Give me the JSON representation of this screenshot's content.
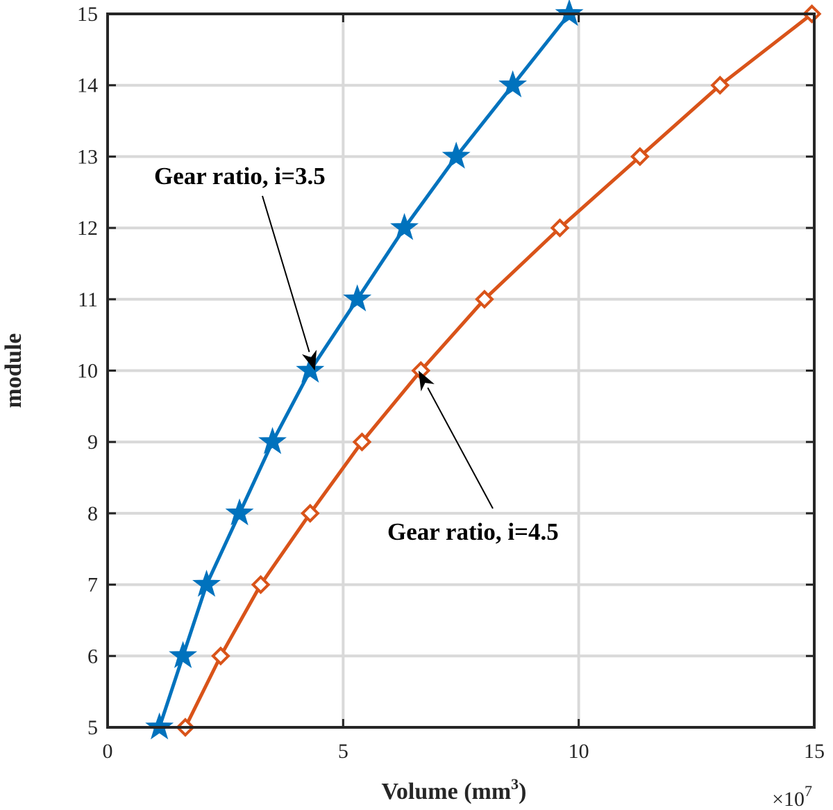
{
  "chart_data": {
    "type": "line",
    "xlabel_main": "Volume (mm",
    "xlabel_sup": "3",
    "xlabel_close": ")",
    "ylabel": "module",
    "x_exponent_base": "×10",
    "x_exponent_power": "7",
    "xlim": [
      0,
      15
    ],
    "ylim": [
      5,
      15
    ],
    "x_ticks": [
      0,
      5,
      10,
      15
    ],
    "y_ticks": [
      5,
      6,
      7,
      8,
      9,
      10,
      11,
      12,
      13,
      14,
      15
    ],
    "grid": true,
    "series": [
      {
        "color": "#0072BD",
        "marker": "star",
        "x": [
          1.1,
          1.6,
          2.1,
          2.8,
          3.5,
          4.3,
          5.3,
          6.3,
          7.4,
          8.6,
          9.8
        ],
        "y": [
          5,
          6,
          7,
          8,
          9,
          10,
          11,
          12,
          13,
          14,
          15
        ]
      },
      {
        "color": "#D95319",
        "marker": "diamond",
        "x": [
          1.65,
          2.4,
          3.25,
          4.3,
          5.4,
          6.65,
          8.0,
          9.6,
          11.3,
          13.0,
          14.95
        ],
        "y": [
          5,
          6,
          7,
          8,
          9,
          10,
          11,
          12,
          13,
          14,
          15
        ]
      }
    ],
    "annotations": [
      {
        "text": "Gear ratio, i=3.5",
        "target_x": 4.4,
        "target_y": 10.0
      },
      {
        "text": "Gear ratio, i=4.5",
        "target_x": 6.6,
        "target_y": 10.0
      }
    ]
  }
}
